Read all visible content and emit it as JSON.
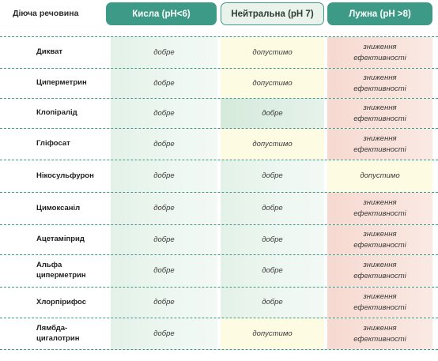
{
  "header": {
    "substance": "Діюча речовина",
    "acid": "Кисла (pH<6)",
    "neutral": "Нейтральна (pH 7)",
    "alkaline": "Лужна (pH >8)"
  },
  "colors": {
    "accent": "#3d9a86",
    "good": "#e3f1e8",
    "acceptable": "#fdfbe1",
    "reduced": "#f6d9d0"
  },
  "rows": [
    {
      "name": "Дикват",
      "acid": "добре",
      "neutral": "допустимо",
      "alkaline": "зниження\nефективності"
    },
    {
      "name": "Циперметрин",
      "acid": "добре",
      "neutral": "допустимо",
      "alkaline": "зниження\nефективності"
    },
    {
      "name": "Клопіралід",
      "acid": "добре",
      "neutral": "добре",
      "alkaline": "зниження\nефективності"
    },
    {
      "name": "Гліфосат",
      "acid": "добре",
      "neutral": "допустимо",
      "alkaline": "зниження\nефективності"
    },
    {
      "name": "Нікосульфурон",
      "acid": "добре",
      "neutral": "добре",
      "alkaline": "допустимо"
    },
    {
      "name": "Цимоксаніл",
      "acid": "добре",
      "neutral": "добре",
      "alkaline": "зниження\nефективності"
    },
    {
      "name": "Ацетаміприд",
      "acid": "добре",
      "neutral": "добре",
      "alkaline": "зниження\nефективності"
    },
    {
      "name": "Альфа\nциперметрин",
      "acid": "добре",
      "neutral": "добре",
      "alkaline": "зниження\nефективності"
    },
    {
      "name": "Хлорпірифос",
      "acid": "добре",
      "neutral": "добре",
      "alkaline": "зниження\nефективності"
    },
    {
      "name": "Лямбда-\nцигалотрин",
      "acid": "добре",
      "neutral": "допустимо",
      "alkaline": "зниження\nефективності"
    }
  ]
}
